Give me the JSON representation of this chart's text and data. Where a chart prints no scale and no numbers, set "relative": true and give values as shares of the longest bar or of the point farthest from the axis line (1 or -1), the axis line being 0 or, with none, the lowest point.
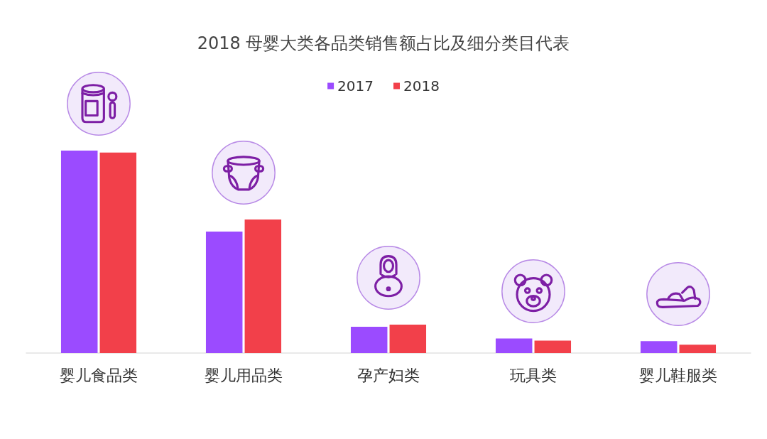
{
  "chart_data": {
    "type": "bar",
    "title": "2018 母婴大类各品类销售额占比及细分类目代表",
    "categories": [
      "婴儿食品类",
      "婴儿用品类",
      "孕产妇类",
      "玩具类",
      "婴儿鞋服类"
    ],
    "relative": true,
    "legend": "top",
    "series": [
      {
        "name": "2017",
        "color": "#9b4bff",
        "values": [
          1,
          0.6,
          0.13,
          0.072,
          0.059
        ]
      },
      {
        "name": "2018",
        "color": "#f2404a",
        "values": [
          0.99,
          0.66,
          0.14,
          0.061,
          0.041
        ]
      }
    ]
  }
}
